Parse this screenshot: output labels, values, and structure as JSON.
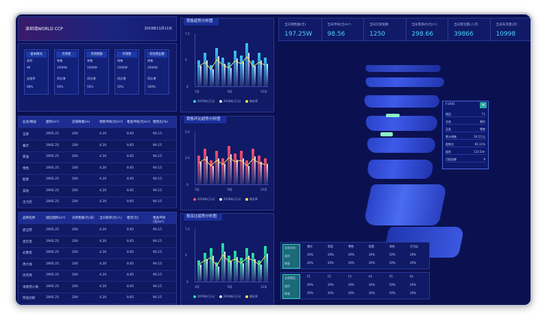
{
  "title": "深圳湾WORLD CCP",
  "date": "2019年11月11日",
  "top_stats": [
    {
      "label": "当日销售额(元)",
      "value": "197.25W"
    },
    {
      "label": "当日坪效(元/m²)",
      "value": "98.56"
    },
    {
      "label": "当日交易笔数",
      "value": "1250"
    },
    {
      "label": "当日客单价(元/人)",
      "value": "298.66"
    },
    {
      "label": "当日客流量(人次)",
      "value": "39866"
    },
    {
      "label": "当日车流量(次)",
      "value": "10998"
    }
  ],
  "mini_cards": [
    {
      "title": "基本情况",
      "a": "面积",
      "b": "96",
      "c": "出租率",
      "d": "98%"
    },
    {
      "title": "月销售",
      "a": "销售",
      "b": "2000W",
      "c": "同比增",
      "d": "50%"
    },
    {
      "title": "月销售额",
      "a": "销售",
      "b": "2000W",
      "c": "同比增",
      "d": "50%"
    },
    {
      "title": "月销售",
      "a": "销售",
      "b": "2000W",
      "c": "同比增",
      "d": "50%"
    },
    {
      "title": "有效营业额",
      "a": "销售",
      "b": "2000W",
      "c": "同比增",
      "d": "100%"
    }
  ],
  "table1": {
    "headers": [
      "业态/楼层",
      "面积(m²)",
      "店铺数量(m)",
      "销售坪效(元/m²)",
      "租金坪效(元/m²)",
      "租售比(%)"
    ],
    "rows": [
      [
        "全部",
        "2905.25",
        "200",
        "4.20",
        "8.65",
        "90.15"
      ],
      [
        "餐饮",
        "2905.25",
        "200",
        "4.20",
        "8.65",
        "90.15"
      ],
      [
        "家居",
        "2905.25",
        "200",
        "4.20",
        "8.65",
        "90.15"
      ],
      [
        "零售",
        "2905.25",
        "200",
        "4.20",
        "8.65",
        "90.15"
      ],
      [
        "配套",
        "2905.25",
        "200",
        "4.20",
        "8.65",
        "90.15"
      ],
      [
        "其他",
        "2905.25",
        "200",
        "4.20",
        "8.65",
        "90.15"
      ],
      [
        "主力店",
        "2905.25",
        "200",
        "4.20",
        "8.65",
        "90.15"
      ]
    ]
  },
  "table2": {
    "headers": [
      "品牌名称",
      "铺位面积(m²)",
      "日销售额(元/日)",
      "当日客单(元/人)",
      "租赁(元)",
      "租金坪效(元/m²)"
    ],
    "rows": [
      [
        "麦当劳",
        "2905.25",
        "200",
        "4.20",
        "8.65",
        "90.15"
      ],
      [
        "星巴克",
        "2905.25",
        "200",
        "4.20",
        "8.65",
        "90.15"
      ],
      [
        "必胜客",
        "2905.25",
        "200",
        "4.20",
        "8.65",
        "90.15"
      ],
      [
        "周大福",
        "2905.25",
        "200",
        "4.20",
        "8.65",
        "90.15"
      ],
      [
        "优衣库",
        "2905.25",
        "200",
        "4.20",
        "8.65",
        "90.15"
      ],
      [
        "海底捞火锅",
        "2905.25",
        "200",
        "4.20",
        "8.65",
        "90.15"
      ],
      [
        "阿迪达斯",
        "2905.25",
        "200",
        "4.20",
        "8.65",
        "90.15"
      ]
    ]
  },
  "charts": [
    {
      "title": "销售趋势分析图",
      "ymax": "7.5",
      "ymid": "5",
      "ymin": "0",
      "x": [
        "1月",
        "6月",
        "12月"
      ],
      "legend": [
        "2019年(万元)",
        "2018年(万元)",
        "增长率"
      ],
      "color": "#37c6ff"
    },
    {
      "title": "销售环比趋势分析图",
      "ymax": "5.0",
      "ymid": "2.5",
      "ymin": "0",
      "x": [
        "1月",
        "6月",
        "12月"
      ],
      "legend": [
        "2019年(万元)",
        "2018年(万元)",
        "增长率"
      ],
      "color": "#ff4d6d"
    },
    {
      "title": "租赁比趋势分析图",
      "ymax": "7.5",
      "ymid": "5",
      "ymin": "0",
      "x": [
        "1月",
        "6月",
        "12月"
      ],
      "legend": [
        "2019年(万元)",
        "2018年(万元)",
        "增长率"
      ],
      "color": "#25e8a6"
    }
  ],
  "popup": {
    "title": "F1001",
    "rows": [
      [
        "楼层",
        "F1"
      ],
      [
        "业态",
        "餐饮"
      ],
      [
        "品类",
        "零售"
      ],
      [
        "累计销售",
        "10.5万元"
      ],
      [
        "租售比",
        "85.11%"
      ],
      [
        "面积",
        "123.5m²"
      ],
      [
        "月租金额",
        "9"
      ]
    ]
  },
  "bottom_tables": [
    {
      "btn": "全部业态",
      "lbl1": "面积",
      "lbl2": "数量",
      "cols": [
        "餐饮",
        "家居",
        "零售",
        "配套",
        "其他",
        "主力店"
      ],
      "vals": [
        "20%",
        "20%",
        "20%",
        "20%",
        "50%",
        "20%"
      ]
    },
    {
      "btn": "全部楼层",
      "lbl1": "面积",
      "lbl2": "数量",
      "cols": [
        "F1",
        "F2",
        "F3",
        "F4",
        "F5",
        "F6"
      ],
      "vals": [
        "20%",
        "20%",
        "20%",
        "20%",
        "50%",
        "20%"
      ]
    }
  ]
}
